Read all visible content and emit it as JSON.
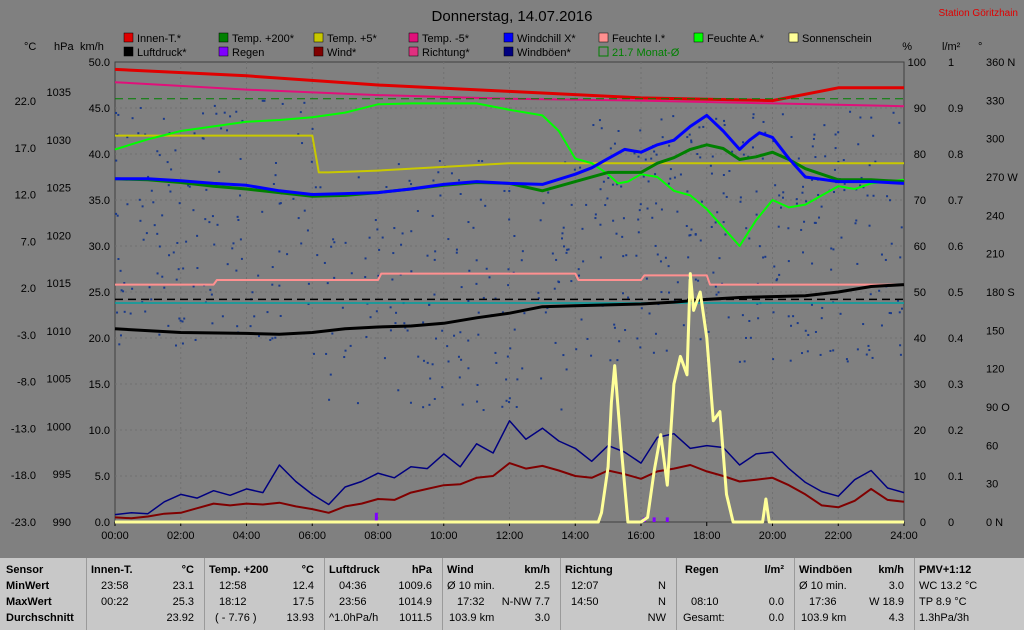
{
  "chart_data": {
    "type": "line",
    "title": "Donnerstag, 14.07.2016",
    "station": "Station Göritzhain",
    "legend": [
      {
        "label": "Innen-T.*",
        "color": "#e00000"
      },
      {
        "label": "Temp. +200*",
        "color": "#008000"
      },
      {
        "label": "Temp. +5*",
        "color": "#c8c800"
      },
      {
        "label": "Temp. -5*",
        "color": "#e0107a"
      },
      {
        "label": "Windchill X*",
        "color": "#0000ff"
      },
      {
        "label": "Feuchte I.*",
        "color": "#ff9090"
      },
      {
        "label": "Feuchte A.*",
        "color": "#00ff00"
      },
      {
        "label": "Sonnenschein",
        "color": "#ffff99"
      },
      {
        "label": "Luftdruck*",
        "color": "#000000"
      },
      {
        "label": "Regen",
        "color": "#8000ff"
      },
      {
        "label": "Wind*",
        "color": "#800000"
      },
      {
        "label": "Richtung*",
        "color": "#e03080"
      },
      {
        "label": "Windböen*",
        "color": "#000080"
      },
      {
        "label": "21.7 Monat-Ø",
        "color": "#008000",
        "dashed": true
      }
    ],
    "axis_units": {
      "temp": "°C",
      "pressure": "hPa",
      "wind": "km/h",
      "humidity": "%",
      "rain": "l/m²",
      "direction": "°"
    },
    "axes": {
      "temp": [
        "22.0",
        "17.0",
        "12.0",
        "7.0",
        "2.0",
        "-3.0",
        "-8.0",
        "-13.0",
        "-18.0",
        "-23.0"
      ],
      "pressure": [
        "1035",
        "1030",
        "1025",
        "1020",
        "1015",
        "1010",
        "1005",
        "1000",
        "995",
        "990"
      ],
      "wind": [
        "50.0",
        "45.0",
        "40.0",
        "35.0",
        "30.0",
        "25.0",
        "20.0",
        "15.0",
        "10.0",
        "5.0",
        "0.0"
      ],
      "humidity": [
        "100",
        "90",
        "80",
        "70",
        "60",
        "50",
        "40",
        "30",
        "20",
        "10",
        "0"
      ],
      "rain": [
        "1",
        "0.9",
        "0.8",
        "0.7",
        "0.6",
        "0.5",
        "0.4",
        "0.3",
        "0.2",
        "0.1",
        "0"
      ],
      "direction": [
        "360 N",
        "330",
        "300",
        "270 W",
        "240",
        "210",
        "180 S",
        "150",
        "120",
        "90 O",
        "60",
        "30",
        "0 N"
      ]
    },
    "x_ticks": [
      "00:00",
      "02:00",
      "04:00",
      "06:00",
      "08:00",
      "10:00",
      "12:00",
      "14:00",
      "16:00",
      "18:00",
      "20:00",
      "22:00",
      "24:00"
    ],
    "wind_ylim": [
      0,
      50
    ],
    "grid": true,
    "series": [
      {
        "name": "Innen-T.*",
        "color": "#e00000",
        "width": 3,
        "axis": "wind",
        "x": [
          0,
          4,
          8,
          12,
          16,
          20,
          22,
          24
        ],
        "y": [
          49.2,
          48.5,
          47.5,
          46.8,
          46.1,
          45.8,
          47.2,
          47.2
        ]
      },
      {
        "name": "Temp. -5*",
        "color": "#e0107a",
        "width": 2,
        "axis": "wind",
        "x": [
          0,
          4,
          8,
          12,
          16,
          20,
          24
        ],
        "y": [
          47.8,
          47.0,
          46.4,
          46.0,
          45.8,
          45.5,
          45.2
        ]
      },
      {
        "name": "Temp. +5*",
        "color": "#c8c800",
        "width": 2,
        "axis": "wind",
        "x": [
          0,
          6,
          6.2,
          6.5,
          8,
          12,
          16,
          20,
          24
        ],
        "y": [
          42.0,
          42.0,
          38.0,
          38.0,
          38.2,
          39.0,
          39.0,
          39.0,
          39.0
        ]
      },
      {
        "name": "Feuchte A.*",
        "color": "#00ff00",
        "width": 2,
        "axis": "wind",
        "x": [
          0,
          1,
          2,
          3,
          4,
          5,
          6,
          7,
          8,
          9,
          10,
          11,
          12,
          13,
          13.5,
          14,
          14.5,
          15,
          15.3,
          15.6,
          16,
          16.5,
          17,
          17.5,
          18,
          18.5,
          19,
          19.5,
          20,
          20.5,
          21,
          21.5,
          22,
          22.5,
          23,
          24
        ],
        "y": [
          40.5,
          41.6,
          42.5,
          43.0,
          43.5,
          43.7,
          44.0,
          44.5,
          45.4,
          45.5,
          45.5,
          45.5,
          44.8,
          44.2,
          42.5,
          39.5,
          39.0,
          37.8,
          36.8,
          37.0,
          37.8,
          37.5,
          36.0,
          35.5,
          34.0,
          32.0,
          30.0,
          32.8,
          35.0,
          34.2,
          34.5,
          35.5,
          36.5,
          36.2,
          36.8,
          37.2
        ]
      },
      {
        "name": "Temp. +200*",
        "color": "#008000",
        "width": 3,
        "axis": "wind",
        "x": [
          0,
          1,
          2,
          3,
          4,
          5,
          6,
          7,
          8,
          9,
          10,
          11,
          12,
          13,
          14,
          15,
          16,
          16.5,
          17,
          17.5,
          18,
          18.5,
          19,
          19.5,
          20,
          20.5,
          21,
          22,
          23,
          24
        ],
        "y": [
          37.3,
          37.2,
          36.9,
          36.5,
          36.2,
          35.8,
          35.4,
          35.5,
          35.8,
          36.2,
          36.6,
          36.9,
          36.8,
          36.0,
          37.0,
          38.0,
          38.0,
          39.0,
          39.6,
          40.5,
          41.0,
          40.6,
          39.4,
          39.7,
          40.2,
          39.4,
          38.4,
          37.2,
          37.2,
          37.0
        ]
      },
      {
        "name": "Windchill X*",
        "color": "#0000ff",
        "width": 3,
        "axis": "wind",
        "x": [
          0,
          1,
          2,
          3,
          4,
          5,
          6,
          7,
          8,
          9,
          10,
          11,
          12,
          13,
          14,
          14.5,
          15,
          15.5,
          16,
          16.5,
          17,
          17.5,
          18,
          18.5,
          19,
          19.3,
          19.6,
          20,
          20.5,
          21,
          22,
          23,
          24
        ],
        "y": [
          37.3,
          37.3,
          37.1,
          36.8,
          36.6,
          36.0,
          35.6,
          35.7,
          35.8,
          36.2,
          36.7,
          37.0,
          36.8,
          36.7,
          37.8,
          38.5,
          39.5,
          40.5,
          40.2,
          41.0,
          41.5,
          43.0,
          44.2,
          42.5,
          40.5,
          41.5,
          42.3,
          41.8,
          39.5,
          37.5,
          37.0,
          37.0,
          36.8
        ]
      },
      {
        "name": "Feuchte I.*",
        "color": "#ff9090",
        "width": 2,
        "axis": "wind",
        "x": [
          0,
          3,
          3.1,
          8,
          8.1,
          14,
          14.1,
          16,
          16.1,
          18,
          18.1,
          20,
          24
        ],
        "y": [
          25.8,
          25.8,
          26.3,
          26.3,
          27.0,
          27.0,
          26.3,
          26.3,
          26.8,
          26.8,
          25.8,
          25.8,
          25.8
        ]
      },
      {
        "name": "Luftdruck*",
        "color": "#000000",
        "width": 3,
        "axis": "wind",
        "x": [
          0,
          2,
          4,
          5,
          6,
          7,
          8,
          9,
          10,
          11,
          12,
          13,
          14,
          15,
          16,
          17,
          18,
          19,
          20,
          21,
          22,
          23,
          24
        ],
        "y": [
          21.0,
          20.6,
          20.5,
          20.4,
          20.6,
          21.0,
          21.2,
          21.3,
          21.6,
          22.2,
          22.7,
          23.4,
          23.5,
          23.6,
          23.7,
          23.9,
          24.2,
          24.4,
          24.5,
          24.6,
          25.0,
          25.6,
          25.8
        ]
      },
      {
        "name": "Wind*",
        "color": "#800000",
        "width": 2,
        "axis": "wind",
        "x": [
          0,
          0.5,
          1,
          1.5,
          2,
          2.5,
          3,
          3.5,
          4,
          4.5,
          5,
          5.5,
          6,
          6.5,
          7,
          7.5,
          8,
          8.5,
          9,
          9.5,
          10,
          10.5,
          11,
          11.5,
          12,
          12.5,
          13,
          13.5,
          14,
          14.5,
          15,
          15.5,
          16,
          16.5,
          17,
          17.5,
          18,
          18.5,
          19,
          19.5,
          20,
          20.5,
          21,
          21.5,
          22,
          22.5,
          23,
          23.5,
          24
        ],
        "y": [
          0.5,
          0.4,
          0.6,
          0.9,
          1.0,
          1.5,
          2.0,
          1.8,
          2.0,
          1.9,
          2.1,
          1.7,
          1.4,
          1.0,
          1.7,
          2.0,
          2.5,
          2.4,
          3.2,
          3.6,
          4.0,
          4.1,
          4.8,
          5.0,
          6.4,
          5.8,
          6.1,
          5.6,
          5.0,
          4.8,
          5.6,
          5.2,
          4.7,
          5.5,
          5.8,
          6.2,
          5.5,
          5.0,
          4.4,
          4.6,
          4.8,
          4.0,
          3.0,
          1.8,
          1.6,
          2.3,
          3.6,
          2.4,
          2.2
        ]
      },
      {
        "name": "Windböen*",
        "color": "#000080",
        "width": 1.5,
        "axis": "wind",
        "x": [
          0,
          0.5,
          1,
          1.5,
          2,
          2.5,
          3,
          3.5,
          4,
          4.5,
          5,
          5.5,
          6,
          6.5,
          7,
          7.5,
          8,
          8.5,
          9,
          9.5,
          10,
          10.5,
          11,
          11.5,
          12,
          12.5,
          13,
          13.5,
          14,
          14.5,
          15,
          15.5,
          16,
          16.5,
          17,
          17.5,
          18,
          18.5,
          19,
          19.5,
          20,
          20.5,
          21,
          21.5,
          22,
          22.5,
          23,
          23.5,
          24
        ],
        "y": [
          0.8,
          1.0,
          0.9,
          2.2,
          3.0,
          2.6,
          3.4,
          2.9,
          3.6,
          3.2,
          6.2,
          4.4,
          3.0,
          1.9,
          3.8,
          4.4,
          5.3,
          4.8,
          6.0,
          5.8,
          7.4,
          6.0,
          8.5,
          7.5,
          11.0,
          9.0,
          10.2,
          8.8,
          8.0,
          6.6,
          8.3,
          7.6,
          6.4,
          9.2,
          9.6,
          8.0,
          8.3,
          8.1,
          6.2,
          7.4,
          7.6,
          5.8,
          4.3,
          3.3,
          2.8,
          4.6,
          5.6,
          3.7,
          3.2
        ]
      },
      {
        "name": "Sonnenschein",
        "color": "#ffff99",
        "width": 3,
        "axis": "wind",
        "x": [
          0,
          14.7,
          14.8,
          15,
          15.1,
          15.2,
          15.4,
          15.6,
          15.8,
          16,
          16.2,
          16.4,
          16.6,
          16.8,
          17,
          17.2,
          17.4,
          17.5,
          17.6,
          17.8,
          18,
          18.2,
          18.4,
          18.6,
          18.8,
          19,
          19.6,
          19.7,
          19.8,
          19.9,
          20,
          24
        ],
        "y": [
          0,
          0,
          1.0,
          6.0,
          13.0,
          17.0,
          8.0,
          0,
          0,
          0,
          0.5,
          5.5,
          9.5,
          4.0,
          15.0,
          18.0,
          16.0,
          27.0,
          23.0,
          25.0,
          20.0,
          11.0,
          12.0,
          3.0,
          0,
          0,
          0,
          0,
          2.5,
          0,
          0,
          0
        ]
      },
      {
        "name": "21.7 Monat-Ø",
        "color": "#008000",
        "width": 1,
        "dashed": true,
        "axis": "wind",
        "x": [
          0,
          24
        ],
        "y": [
          46.0,
          46.0
        ]
      }
    ],
    "reference_lines": [
      {
        "color": "#000000",
        "dashed": true,
        "y": 24.2
      },
      {
        "color": "#00a0a0",
        "dashed": false,
        "y": 23.8
      }
    ],
    "rain_bars": [
      {
        "x": 7.95,
        "y": 1.0
      },
      {
        "x": 16.1,
        "y": 0.5
      },
      {
        "x": 16.4,
        "y": 0.5
      },
      {
        "x": 16.8,
        "y": 0.5
      }
    ],
    "direction_scatter_seed": 7
  },
  "summary": {
    "labels": {
      "sensor": "Sensor",
      "min": "MinWert",
      "max": "MaxWert",
      "avg": "Durchschnitt"
    },
    "innen": {
      "h1": "Innen-T.",
      "h2": "°C",
      "min_t": "23:58",
      "min_v": "23.1",
      "max_t": "00:22",
      "max_v": "25.3",
      "avg_v": "23.92"
    },
    "temp": {
      "h1": "Temp. +200",
      "h2": "°C",
      "min_t": "12:58",
      "min_v": "12.4",
      "max_t": "18:12",
      "max_v": "17.5",
      "avg_t": "( - 7.76 )",
      "avg_v": "13.93"
    },
    "luft": {
      "h1": "Luftdruck",
      "h2": "hPa",
      "min_t": "04:36",
      "min_v": "1009.6",
      "max_t": "23:56",
      "max_v": "1014.9",
      "avg_t": "^1.0hPa/h",
      "avg_v": "1011.5"
    },
    "wind": {
      "h1": "Wind",
      "h2": "km/h",
      "min_t": "Ø 10 min.",
      "min_v": "2.5",
      "max_t": "17:32",
      "max_v": "N-NW 7.7",
      "avg_t": "103.9 km",
      "avg_v": "3.0"
    },
    "richtung": {
      "h1": "Richtung",
      "min_t": "12:07",
      "min_v": "N",
      "max_t": "14:50",
      "max_v": "N",
      "avg_v": "NW"
    },
    "regen": {
      "h1": "Regen",
      "h2": "l/m²",
      "max_t": "08:10",
      "max_v": "0.0",
      "avg_t": "Gesamt:",
      "avg_v": "0.0"
    },
    "boeen": {
      "h1": "Windböen",
      "h2": "km/h",
      "min_t": "Ø 10 min.",
      "min_v": "3.0",
      "max_t": "17:36",
      "max_v": "W 18.9",
      "avg_t": "103.9 km",
      "avg_v": "4.3"
    },
    "pmv": {
      "h1": "PMV+1:12",
      "min_v": "WC 13.2 °C",
      "max_v": "TP 8.9 °C",
      "avg_v": "1.3hPa/3h"
    }
  }
}
